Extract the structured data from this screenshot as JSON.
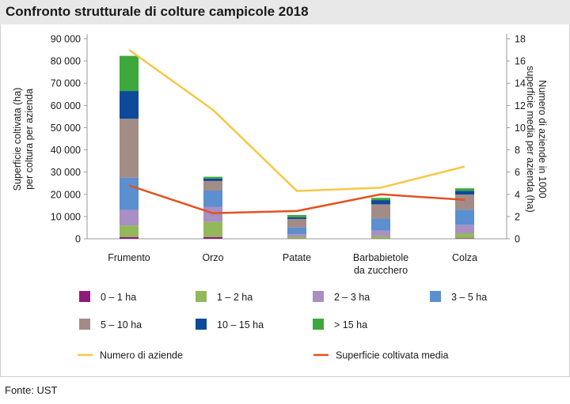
{
  "title": "Confronto strutturale di colture campicole 2018",
  "source": "Fonte: UST",
  "chart_data": {
    "type": "bar",
    "stacked": true,
    "categories": [
      [
        "Frumento"
      ],
      [
        "Orzo"
      ],
      [
        "Patate"
      ],
      [
        "Barbabietole",
        "da zucchero"
      ],
      [
        "Colza"
      ]
    ],
    "ylabel_left": [
      "Superficie coltivata (ha)",
      "per coltura per azienda"
    ],
    "ylabel_right": [
      "Numero  di aziende in 1000",
      "superficie media per azienda (ha)"
    ],
    "ylim_left": [
      0,
      90000
    ],
    "yticks_left": [
      "0",
      "10 000",
      "20 000",
      "30 000",
      "40 000",
      "50 000",
      "60 000",
      "70 000",
      "80 000",
      "90 000"
    ],
    "ylim_right": [
      0,
      18
    ],
    "yticks_right": [
      "0",
      "2",
      "4",
      "6",
      "8",
      "10",
      "12",
      "14",
      "16",
      "18"
    ],
    "series": [
      {
        "name": "0 – 1 ha",
        "color": "#8e1b7a",
        "values": [
          800,
          800,
          100,
          100,
          200
        ]
      },
      {
        "name": "1 – 2 ha",
        "color": "#93b85a",
        "values": [
          5200,
          6800,
          800,
          1000,
          2300
        ]
      },
      {
        "name": "2 – 3 ha",
        "color": "#a98fc4",
        "values": [
          7000,
          6800,
          1200,
          2600,
          3800
        ]
      },
      {
        "name": "3 – 5 ha",
        "color": "#5b8fcf",
        "values": [
          14500,
          7300,
          3000,
          5400,
          6800
        ]
      },
      {
        "name": "5 – 10 ha",
        "color": "#a38c86",
        "values": [
          26500,
          4300,
          3800,
          6400,
          6800
        ]
      },
      {
        "name": "10 – 15 ha",
        "color": "#0d4a99",
        "values": [
          12500,
          1100,
          800,
          1900,
          1700
        ]
      },
      {
        "name": "> 15 ha",
        "color": "#3da93a",
        "values": [
          15800,
          800,
          1000,
          1000,
          1100
        ]
      }
    ],
    "lines": [
      {
        "name": "Numero di aziende",
        "color": "#f6c847",
        "axis": "right",
        "values": [
          17.0,
          11.6,
          4.3,
          4.6,
          6.5
        ]
      },
      {
        "name": "Superficie coltivata media",
        "color": "#e0531e",
        "axis": "right",
        "values": [
          4.8,
          2.3,
          2.5,
          4.0,
          3.5
        ]
      }
    ]
  }
}
